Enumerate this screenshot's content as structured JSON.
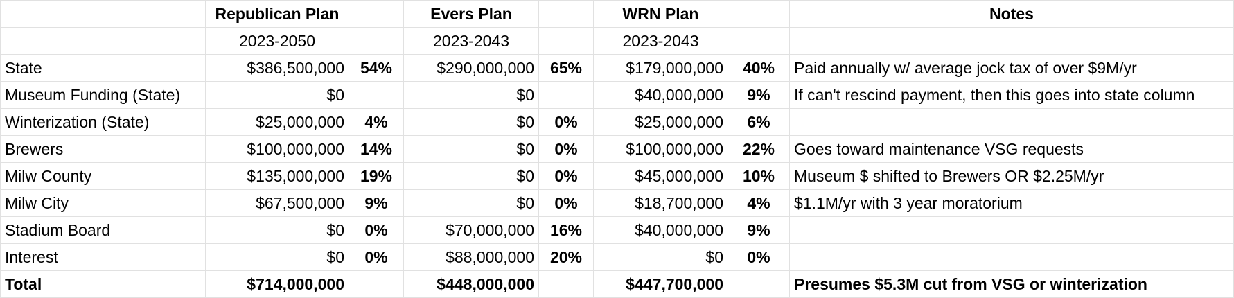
{
  "headers": {
    "republican": "Republican Plan",
    "evers": "Evers Plan",
    "wrn": "WRN Plan",
    "notes": "Notes"
  },
  "periods": {
    "republican": "2023-2050",
    "evers": "2023-2043",
    "wrn": "2023-2043"
  },
  "rows": [
    {
      "label": "State",
      "rep": "$386,500,000",
      "rep_pct": "54%",
      "evers": "$290,000,000",
      "evers_pct": "65%",
      "wrn": "$179,000,000",
      "wrn_pct": "40%",
      "note": "Paid annually w/ average jock tax of over $9M/yr"
    },
    {
      "label": "Museum Funding (State)",
      "rep": "$0",
      "rep_pct": "",
      "evers": "$0",
      "evers_pct": "",
      "wrn": "$40,000,000",
      "wrn_pct": "9%",
      "note": "If can't rescind payment, then this goes into state column"
    },
    {
      "label": "Winterization (State)",
      "rep": "$25,000,000",
      "rep_pct": "4%",
      "evers": "$0",
      "evers_pct": "0%",
      "wrn": "$25,000,000",
      "wrn_pct": "6%",
      "note": ""
    },
    {
      "label": "Brewers",
      "rep": "$100,000,000",
      "rep_pct": "14%",
      "evers": "$0",
      "evers_pct": "0%",
      "wrn": "$100,000,000",
      "wrn_pct": "22%",
      "note": "Goes toward maintenance VSG requests"
    },
    {
      "label": "Milw County",
      "rep": "$135,000,000",
      "rep_pct": "19%",
      "evers": "$0",
      "evers_pct": "0%",
      "wrn": "$45,000,000",
      "wrn_pct": "10%",
      "note": "Museum $ shifted to Brewers OR $2.25M/yr"
    },
    {
      "label": "Milw City",
      "rep": "$67,500,000",
      "rep_pct": "9%",
      "evers": "$0",
      "evers_pct": "0%",
      "wrn": "$18,700,000",
      "wrn_pct": "4%",
      "note": "$1.1M/yr with 3 year moratorium"
    },
    {
      "label": "Stadium Board",
      "rep": "$0",
      "rep_pct": "0%",
      "evers": "$70,000,000",
      "evers_pct": "16%",
      "wrn": "$40,000,000",
      "wrn_pct": "9%",
      "note": ""
    },
    {
      "label": "Interest",
      "rep": "$0",
      "rep_pct": "0%",
      "evers": "$88,000,000",
      "evers_pct": "20%",
      "wrn": "$0",
      "wrn_pct": "0%",
      "note": ""
    }
  ],
  "total": {
    "label": "Total",
    "rep": "$714,000,000",
    "evers": "$448,000,000",
    "wrn": "$447,700,000",
    "note": "Presumes $5.3M cut from VSG or winterization"
  }
}
